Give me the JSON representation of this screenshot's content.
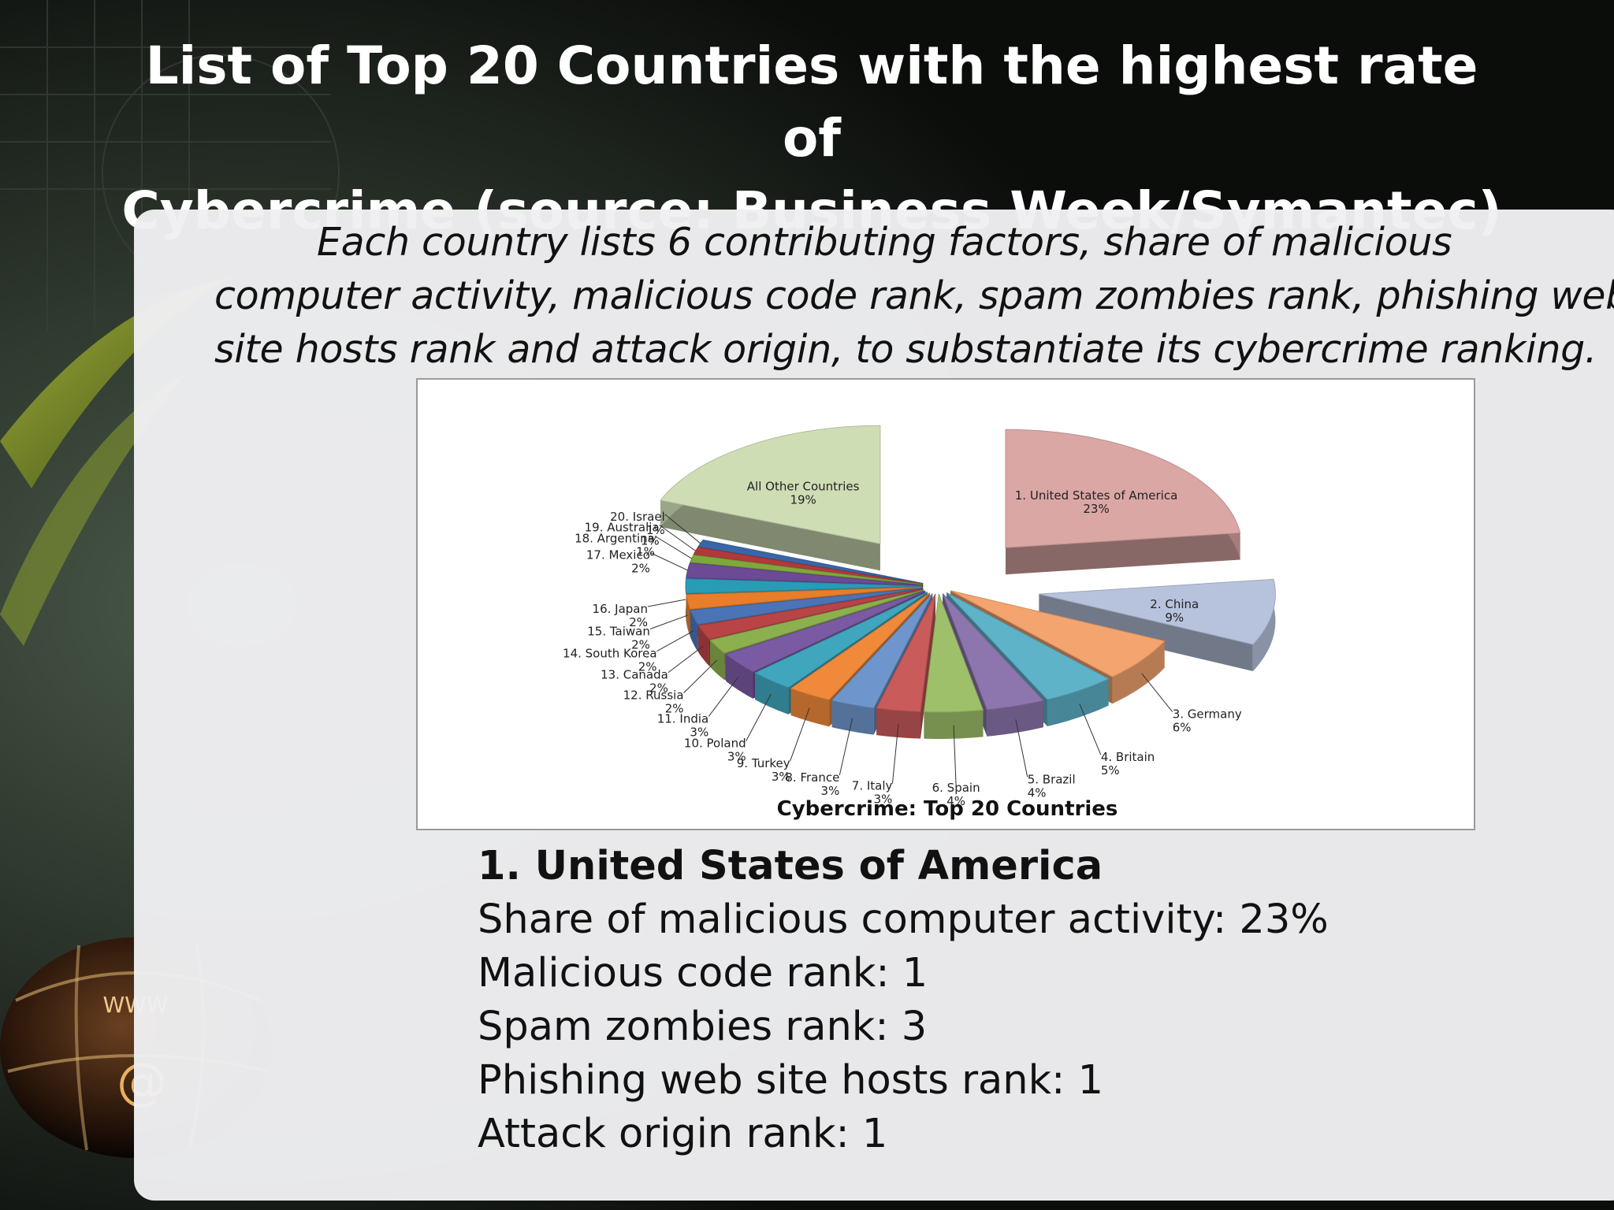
{
  "slide": {
    "title_line1": "List of Top 20 Countries with the highest rate of",
    "title_line2": "Cybercrime (source: Business Week/Symantec)",
    "intro_line1": "Each country lists 6 contributing factors, share of malicious",
    "intro_line2": "computer activity, malicious code rank, spam zombies rank, phishing web",
    "intro_line3": "site hosts rank and attack origin, to substantiate its cybercrime ranking."
  },
  "details": {
    "heading": "1. United States of America",
    "line1": "Share of malicious computer activity: 23%",
    "line2": "Malicious code rank: 1",
    "line3": "Spam zombies rank: 3",
    "line4": "Phishing web site hosts rank: 1",
    "line5": "Attack origin rank: 1"
  },
  "chart_data": {
    "type": "pie",
    "title": "Cybercrime: Top 20 Countries",
    "exploded": true,
    "three_d": true,
    "slices": [
      {
        "label": "1. United States of America",
        "value": 23,
        "color": "#dba7a5"
      },
      {
        "label": "2. China",
        "value": 9,
        "color": "#b7c3dd"
      },
      {
        "label": "3. Germany",
        "value": 6,
        "color": "#f4a46e"
      },
      {
        "label": "4. Britain",
        "value": 5,
        "color": "#5fb3c9"
      },
      {
        "label": "5. Brazil",
        "value": 4,
        "color": "#8d76ad"
      },
      {
        "label": "6. Spain",
        "value": 4,
        "color": "#9ec06a"
      },
      {
        "label": "7. Italy",
        "value": 3,
        "color": "#c95b5b"
      },
      {
        "label": "8. France",
        "value": 3,
        "color": "#6f96cc"
      },
      {
        "label": "9. Turkey",
        "value": 3,
        "color": "#f08a3a"
      },
      {
        "label": "10. Poland",
        "value": 3,
        "color": "#3fa6bd"
      },
      {
        "label": "11. India",
        "value": 3,
        "color": "#7a5aa2"
      },
      {
        "label": "12. Russia",
        "value": 2,
        "color": "#8db04e"
      },
      {
        "label": "13. Canada",
        "value": 2,
        "color": "#b94445"
      },
      {
        "label": "14. South Korea",
        "value": 2,
        "color": "#4a74b5"
      },
      {
        "label": "15. Taiwan",
        "value": 2,
        "color": "#e87d2a"
      },
      {
        "label": "16. Japan",
        "value": 2,
        "color": "#2a9bb5"
      },
      {
        "label": "17. Mexico",
        "value": 2,
        "color": "#6c4a96"
      },
      {
        "label": "18. Argentina",
        "value": 1,
        "color": "#7fa83c"
      },
      {
        "label": "19. Australia",
        "value": 1,
        "color": "#b03a3a"
      },
      {
        "label": "20. Israel",
        "value": 1,
        "color": "#3a66a8"
      },
      {
        "label": "All Other Countries",
        "value": 19,
        "color": "#cfddb5"
      }
    ],
    "value_suffix": "%"
  }
}
